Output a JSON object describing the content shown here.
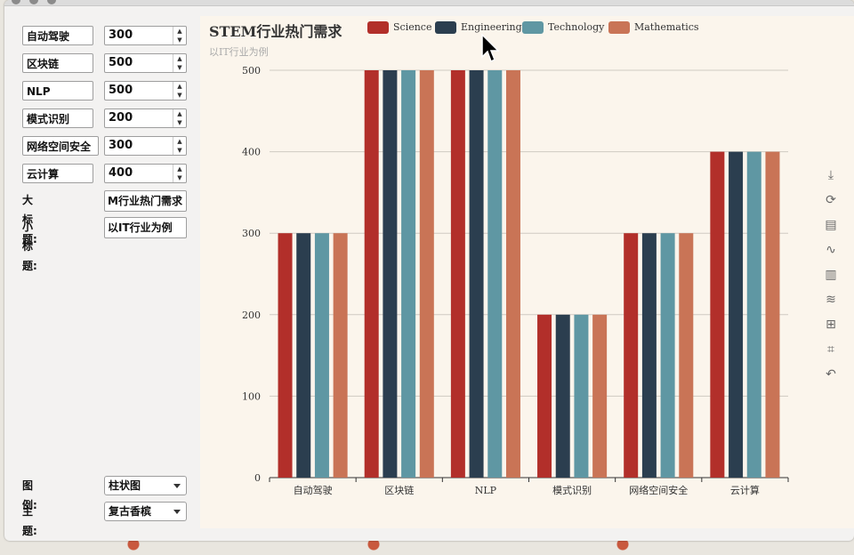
{
  "rows": [
    {
      "label": "自动驾驶",
      "value": "300"
    },
    {
      "label": "区块链",
      "value": "500"
    },
    {
      "label": "NLP",
      "value": "500"
    },
    {
      "label": "模式识别",
      "value": "200"
    },
    {
      "label": "网络空间安全",
      "value": "300"
    },
    {
      "label": "云计算",
      "value": "400"
    }
  ],
  "title_field": {
    "label": "大标题:",
    "value": "M行业热门需求"
  },
  "subtitle_field": {
    "label": "小标题:",
    "value": "以IT行业为例"
  },
  "legend_select": {
    "label": "图例:",
    "value": "柱状图"
  },
  "theme_select": {
    "label": "主题:",
    "value": "复古香槟"
  },
  "toolbox": [
    "download-icon",
    "refresh-icon",
    "data-view-icon",
    "line-chart-icon",
    "bar-chart-icon",
    "stack-icon",
    "tiled-icon",
    "zoom-icon",
    "zoom-reset-icon"
  ],
  "chart_data": {
    "type": "bar",
    "title": "STEM行业热门需求",
    "subtitle": "以IT行业为例",
    "categories": [
      "自动驾驶",
      "区块链",
      "NLP",
      "模式识别",
      "网络空间安全",
      "云计算"
    ],
    "series": [
      {
        "name": "Science",
        "color": "#b22f2a",
        "values": [
          300,
          500,
          500,
          200,
          300,
          400
        ]
      },
      {
        "name": "Engineering",
        "color": "#2b3e4f",
        "values": [
          300,
          500,
          500,
          200,
          300,
          400
        ]
      },
      {
        "name": "Technology",
        "color": "#5f97a3",
        "values": [
          300,
          500,
          500,
          200,
          300,
          400
        ]
      },
      {
        "name": "Mathematics",
        "color": "#c97456",
        "values": [
          300,
          500,
          500,
          200,
          300,
          400
        ]
      }
    ],
    "yticks": [
      0,
      100,
      200,
      300,
      400,
      500
    ],
    "ylim": [
      0,
      500
    ],
    "grid": true,
    "legend": "top"
  }
}
